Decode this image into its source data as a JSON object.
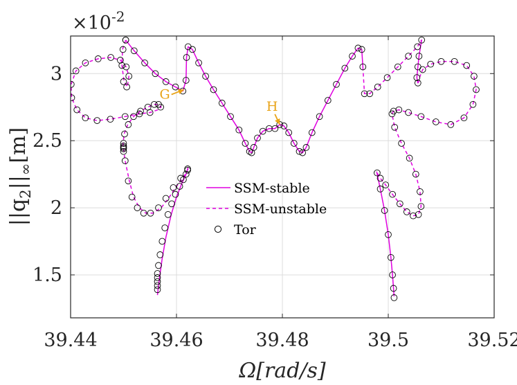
{
  "chart_data": {
    "type": "line",
    "title": "",
    "xlabel": "Ω[rad/s]",
    "ylabel": "||q2||∞[m]",
    "ylabel_parts": [
      "||q",
      "2",
      "||",
      "∞",
      "[m]"
    ],
    "exponent_label": "×10",
    "exponent_power": "-2",
    "xlim": [
      39.44,
      39.52
    ],
    "ylim": [
      1.18,
      3.28
    ],
    "xticks": [
      39.44,
      39.46,
      39.48,
      39.5,
      39.52
    ],
    "xtick_labels": [
      "39.44",
      "39.46",
      "39.48",
      "39.5",
      "39.52"
    ],
    "yticks": [
      1.5,
      2.0,
      2.5,
      3.0
    ],
    "ytick_labels": [
      "1.5",
      "2",
      "2.5",
      "3"
    ],
    "grid": true,
    "colors": {
      "ssm": "#e000e0",
      "tor": "#000000",
      "annotation": "#e8a317",
      "grid": "#dcdcdc",
      "axis": "#262626"
    },
    "legend": {
      "position": "center",
      "entries": [
        {
          "label": "SSM-stable",
          "style": "solid"
        },
        {
          "label": "SSM-unstable",
          "style": "dashed"
        },
        {
          "label": "Tor",
          "style": "marker"
        }
      ]
    },
    "annotations": [
      {
        "label": "G",
        "x": 39.4614,
        "y": 2.88
      },
      {
        "label": "H",
        "x": 39.4795,
        "y": 2.62
      }
    ],
    "series": [
      {
        "name": "SSM-stable A",
        "style": "solid",
        "x": [
          39.4564,
          39.4568,
          39.4573,
          39.458,
          39.459,
          39.46,
          39.461,
          39.4618,
          39.4622
        ],
        "y": [
          1.35,
          1.48,
          1.62,
          1.78,
          1.95,
          2.08,
          2.18,
          2.25,
          2.3
        ]
      },
      {
        "name": "SSM-unstable A",
        "style": "dashed",
        "x": [
          39.4622,
          39.4612,
          39.4598,
          39.4585,
          39.4571,
          39.4555,
          39.4542,
          39.453,
          39.4519,
          39.4511,
          39.4503,
          39.4499,
          39.4501,
          39.4508,
          39.4519,
          39.4532,
          39.4546,
          39.4558,
          39.4567,
          39.4571,
          39.4565,
          39.455,
          39.453,
          39.4503,
          39.4475,
          39.445,
          39.4428,
          39.4412,
          39.4402,
          39.4401,
          39.441,
          39.4428,
          39.4452,
          39.4476,
          39.4494,
          39.4505,
          39.451,
          39.4507,
          39.4501,
          39.4497,
          39.4498,
          39.4504
        ],
        "y": [
          2.29,
          2.22,
          2.15,
          2.07,
          2.0,
          1.96,
          1.96,
          2.0,
          2.08,
          2.2,
          2.35,
          2.47,
          2.55,
          2.62,
          2.68,
          2.72,
          2.75,
          2.77,
          2.77,
          2.75,
          2.73,
          2.71,
          2.7,
          2.68,
          2.66,
          2.65,
          2.67,
          2.73,
          2.82,
          2.92,
          3.02,
          3.08,
          3.11,
          3.12,
          3.1,
          3.05,
          2.98,
          2.9,
          2.94,
          3.06,
          3.18,
          3.25
        ]
      },
      {
        "name": "SSM-stable B",
        "style": "solid",
        "x": [
          39.4504,
          39.452,
          39.454,
          39.456,
          39.458,
          39.4598,
          39.4612,
          39.4618,
          39.4619,
          39.4622,
          39.463,
          39.4642,
          39.4655,
          39.467,
          39.4686,
          39.4702,
          39.4718,
          39.473,
          39.4738,
          39.4742,
          39.4746,
          39.4753,
          39.4763,
          39.4775,
          39.4786,
          39.4795,
          39.4803,
          39.4812,
          39.4822,
          39.4832,
          39.4838,
          39.4845,
          39.4856,
          39.487,
          39.4886,
          39.4902,
          39.4918,
          39.4932,
          39.4943,
          39.495,
          39.4952
        ],
        "y": [
          3.25,
          3.17,
          3.08,
          3.0,
          2.94,
          2.9,
          2.87,
          2.95,
          3.12,
          3.2,
          3.18,
          3.08,
          2.98,
          2.88,
          2.78,
          2.68,
          2.58,
          2.48,
          2.42,
          2.41,
          2.45,
          2.52,
          2.57,
          2.59,
          2.59,
          2.62,
          2.61,
          2.56,
          2.48,
          2.42,
          2.41,
          2.45,
          2.56,
          2.68,
          2.8,
          2.92,
          3.04,
          3.13,
          3.19,
          3.18,
          3.05
        ]
      },
      {
        "name": "SSM-unstable B",
        "style": "dashed",
        "x": [
          39.4952,
          39.4955,
          39.4965,
          39.498,
          39.4998,
          39.5018,
          39.5038,
          39.5055,
          39.5063,
          39.5061
        ],
        "y": [
          3.05,
          2.85,
          2.85,
          2.9,
          2.97,
          3.05,
          3.13,
          3.2,
          3.25,
          3.24
        ]
      },
      {
        "name": "SSM-stable C",
        "style": "solid",
        "x": [
          39.5063,
          39.5058,
          39.5056,
          39.5054,
          39.5056,
          39.5059
        ],
        "y": [
          3.25,
          3.13,
          3.05,
          2.97,
          2.93,
          2.95
        ]
      },
      {
        "name": "SSM-unstable C",
        "style": "dashed",
        "x": [
          39.5059,
          39.5065,
          39.508,
          39.51,
          39.5125,
          39.5148,
          39.5162,
          39.5166,
          39.516,
          39.5143,
          39.5118,
          39.509,
          39.5062,
          39.5038,
          39.502,
          39.501,
          39.5007,
          39.5012,
          39.5025,
          39.504,
          39.5052,
          39.506,
          39.5062,
          39.5057,
          39.5047,
          39.5035,
          39.5022,
          39.5008,
          39.4995,
          39.4985,
          39.4979,
          39.4978
        ],
        "y": [
          2.97,
          3.03,
          3.07,
          3.09,
          3.09,
          3.06,
          2.98,
          2.88,
          2.77,
          2.67,
          2.62,
          2.64,
          2.68,
          2.71,
          2.73,
          2.72,
          2.7,
          2.6,
          2.48,
          2.37,
          2.25,
          2.12,
          2.01,
          1.95,
          1.94,
          1.97,
          2.03,
          2.1,
          2.17,
          2.22,
          2.26,
          2.27
        ]
      },
      {
        "name": "SSM-stable D",
        "style": "solid",
        "x": [
          39.4978,
          39.4985,
          39.4993,
          39.5,
          39.5005,
          39.5008,
          39.501,
          39.5011
        ],
        "y": [
          2.27,
          2.14,
          1.98,
          1.8,
          1.63,
          1.5,
          1.4,
          1.34
        ]
      }
    ],
    "tor_markers": {
      "name": "Tor",
      "x": [
        39.4564,
        39.4564,
        39.4564,
        39.4564,
        39.4564,
        39.4566,
        39.4569,
        39.4573,
        39.4578,
        39.4584,
        39.4591,
        39.4598,
        39.4606,
        39.4613,
        39.4618,
        39.4621,
        39.4621,
        39.4608,
        39.4594,
        39.458,
        39.4566,
        39.4551,
        39.4538,
        39.4526,
        39.4516,
        39.4509,
        39.4503,
        39.45,
        39.45,
        39.45,
        39.45,
        39.45,
        39.4502,
        39.4509,
        39.4519,
        39.4532,
        39.4546,
        39.4558,
        39.4566,
        39.457,
        39.455,
        39.453,
        39.4503,
        39.4475,
        39.445,
        39.4428,
        39.4412,
        39.4402,
        39.4401,
        39.441,
        39.4428,
        39.4452,
        39.4476,
        39.4494,
        39.4505,
        39.451,
        39.4506,
        39.45,
        39.4497,
        39.4499,
        39.4504,
        39.4504,
        39.452,
        39.454,
        39.456,
        39.458,
        39.4598,
        39.4612,
        39.4618,
        39.4619,
        39.4622,
        39.463,
        39.4642,
        39.4655,
        39.467,
        39.4686,
        39.4702,
        39.4718,
        39.473,
        39.4738,
        39.4742,
        39.4746,
        39.4753,
        39.4763,
        39.4775,
        39.4786,
        39.4795,
        39.4803,
        39.4812,
        39.4822,
        39.4832,
        39.4838,
        39.4845,
        39.4856,
        39.487,
        39.4886,
        39.4902,
        39.4918,
        39.4932,
        39.4943,
        39.495,
        39.4952,
        39.4955,
        39.4965,
        39.498,
        39.4998,
        39.5018,
        39.5038,
        39.5055,
        39.5063,
        39.5058,
        39.5056,
        39.5054,
        39.5056,
        39.5065,
        39.508,
        39.51,
        39.5125,
        39.5148,
        39.5162,
        39.5166,
        39.516,
        39.5143,
        39.5118,
        39.509,
        39.5062,
        39.5038,
        39.502,
        39.501,
        39.5007,
        39.5012,
        39.5025,
        39.504,
        39.5052,
        39.506,
        39.5062,
        39.5057,
        39.5047,
        39.5035,
        39.5022,
        39.5008,
        39.4995,
        39.4985,
        39.4979,
        39.4985,
        39.4993,
        39.5,
        39.5005,
        39.5008,
        39.501,
        39.5011
      ],
      "y": [
        1.39,
        1.42,
        1.45,
        1.48,
        1.51,
        1.57,
        1.65,
        1.75,
        1.85,
        1.95,
        2.03,
        2.1,
        2.16,
        2.21,
        2.25,
        2.28,
        2.29,
        2.22,
        2.15,
        2.07,
        2.0,
        1.96,
        1.96,
        2.0,
        2.08,
        2.2,
        2.35,
        2.42,
        2.44,
        2.45,
        2.46,
        2.48,
        2.55,
        2.62,
        2.68,
        2.72,
        2.75,
        2.77,
        2.77,
        2.75,
        2.71,
        2.7,
        2.68,
        2.66,
        2.65,
        2.67,
        2.73,
        2.82,
        2.92,
        3.02,
        3.08,
        3.11,
        3.12,
        3.1,
        3.05,
        2.98,
        2.9,
        2.94,
        3.06,
        3.18,
        3.25,
        3.25,
        3.17,
        3.08,
        3.0,
        2.94,
        2.9,
        2.87,
        2.95,
        3.12,
        3.2,
        3.18,
        3.08,
        2.98,
        2.88,
        2.78,
        2.68,
        2.58,
        2.48,
        2.42,
        2.41,
        2.45,
        2.52,
        2.57,
        2.59,
        2.59,
        2.62,
        2.61,
        2.56,
        2.48,
        2.42,
        2.41,
        2.45,
        2.56,
        2.68,
        2.8,
        2.92,
        3.04,
        3.13,
        3.19,
        3.18,
        3.05,
        2.85,
        2.85,
        2.9,
        2.97,
        3.05,
        3.13,
        3.2,
        3.25,
        3.13,
        3.05,
        2.97,
        2.93,
        3.03,
        3.07,
        3.09,
        3.09,
        3.06,
        2.98,
        2.88,
        2.77,
        2.67,
        2.62,
        2.64,
        2.68,
        2.71,
        2.73,
        2.72,
        2.7,
        2.6,
        2.48,
        2.37,
        2.25,
        2.12,
        2.01,
        1.95,
        1.94,
        1.97,
        2.03,
        2.1,
        2.17,
        2.22,
        2.26,
        2.14,
        1.98,
        1.8,
        1.63,
        1.5,
        1.4,
        1.33
      ]
    }
  }
}
